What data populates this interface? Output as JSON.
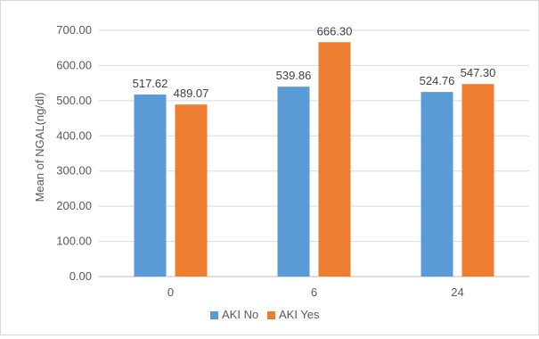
{
  "chart_data": {
    "type": "bar",
    "categories": [
      "0",
      "6",
      "24"
    ],
    "series": [
      {
        "name": "AKI No",
        "color": "#5b9bd5",
        "values": [
          517.62,
          539.86,
          524.76
        ]
      },
      {
        "name": "AKI Yes",
        "color": "#ed7d31",
        "values": [
          489.07,
          666.3,
          547.3
        ]
      }
    ],
    "value_labels": [
      [
        "517.62",
        "539.86",
        "524.76"
      ],
      [
        "489.07",
        "666.30",
        "547.30"
      ]
    ],
    "ylabel": "Mean of NGAL(ng/dl)",
    "xlabel": "",
    "ylim": [
      0,
      700
    ],
    "yticks": [
      "0.00",
      "100.00",
      "200.00",
      "300.00",
      "400.00",
      "500.00",
      "600.00",
      "700.00"
    ],
    "grid": true,
    "legend": "bottom"
  }
}
